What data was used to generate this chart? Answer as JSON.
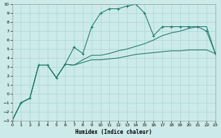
{
  "xlabel": "Humidex (Indice chaleur)",
  "background_color": "#cceaea",
  "line_color": "#1e7a6a",
  "grid_color": "#aad4d4",
  "xlim": [
    0,
    23
  ],
  "ylim": [
    -3,
    10
  ],
  "xticks": [
    0,
    1,
    2,
    3,
    4,
    5,
    6,
    7,
    8,
    9,
    10,
    11,
    12,
    13,
    14,
    15,
    16,
    17,
    18,
    19,
    20,
    21,
    22,
    23
  ],
  "yticks": [
    -3,
    -2,
    -1,
    0,
    1,
    2,
    3,
    4,
    5,
    6,
    7,
    8,
    9,
    10
  ],
  "line1_x": [
    0,
    1,
    2,
    3,
    4,
    5,
    6,
    7,
    8,
    9,
    10,
    11,
    12,
    13,
    14,
    15,
    16,
    17,
    18,
    19,
    20,
    21,
    22,
    23
  ],
  "line1_y": [
    -3,
    -1,
    -0.5,
    3.2,
    3.2,
    1.8,
    3.3,
    5.2,
    4.5,
    7.5,
    9.0,
    9.5,
    9.5,
    9.8,
    10.0,
    9.0,
    6.5,
    7.5,
    7.5,
    7.5,
    7.5,
    7.5,
    7.0,
    4.5
  ],
  "line2_x": [
    0,
    1,
    2,
    3,
    4,
    5,
    6,
    7,
    8,
    9,
    10,
    11,
    12,
    13,
    14,
    15,
    16,
    17,
    18,
    19,
    20,
    21,
    22,
    23
  ],
  "line2_y": [
    -3,
    -1,
    -0.5,
    3.2,
    3.2,
    1.8,
    3.3,
    3.2,
    3.8,
    4.3,
    4.3,
    4.5,
    4.8,
    5.0,
    5.3,
    5.6,
    6.0,
    6.5,
    6.8,
    7.0,
    7.3,
    7.5,
    7.5,
    4.5
  ],
  "line3_x": [
    0,
    1,
    2,
    3,
    4,
    5,
    6,
    7,
    8,
    9,
    10,
    11,
    12,
    13,
    14,
    15,
    16,
    17,
    18,
    19,
    20,
    21,
    22,
    23
  ],
  "line3_y": [
    -3,
    -1,
    -0.5,
    3.2,
    3.2,
    1.8,
    3.3,
    3.2,
    3.5,
    3.8,
    3.8,
    3.9,
    4.0,
    4.2,
    4.4,
    4.5,
    4.6,
    4.7,
    4.8,
    4.8,
    4.9,
    4.9,
    4.9,
    4.5
  ]
}
